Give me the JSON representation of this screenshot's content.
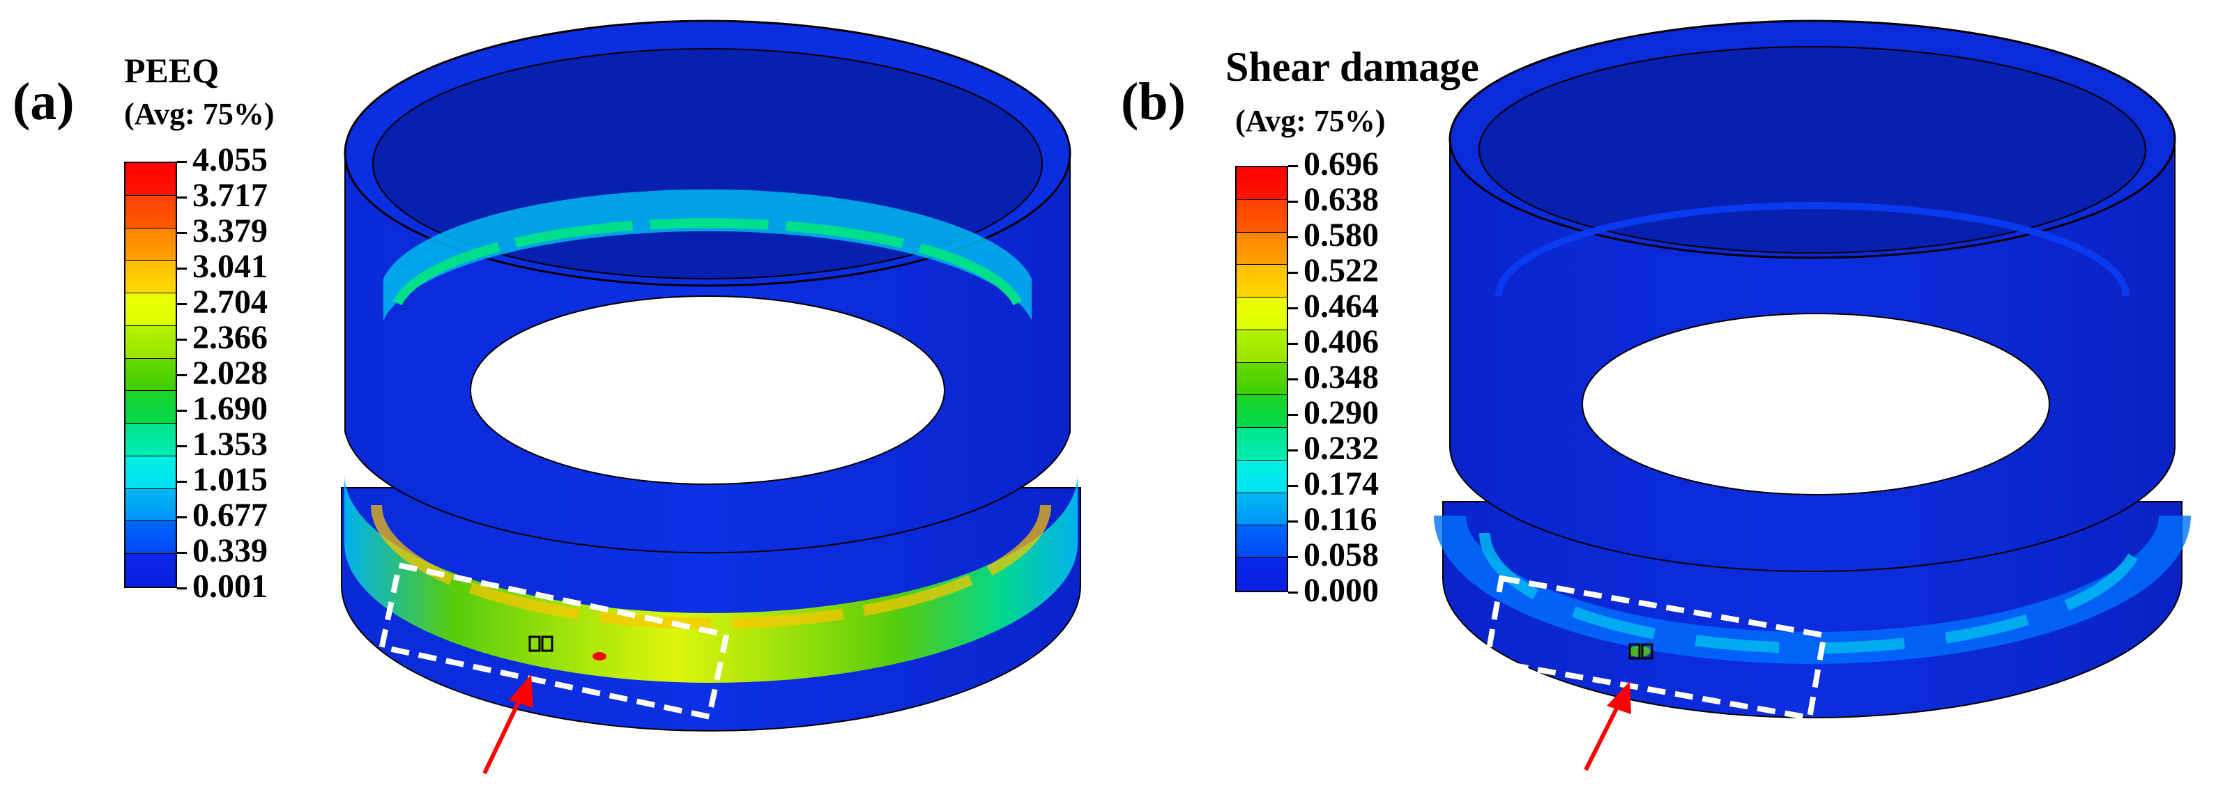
{
  "panel_a": {
    "label": "(a)",
    "legend": {
      "title": "PEEQ",
      "subtitle": "(Avg: 75%)",
      "values": [
        "4.055",
        "3.717",
        "3.379",
        "3.041",
        "2.704",
        "2.366",
        "2.028",
        "1.690",
        "1.353",
        "1.015",
        "0.677",
        "0.339",
        "0.001"
      ]
    }
  },
  "panel_b": {
    "label": "(b)",
    "legend": {
      "title": "Shear damage",
      "subtitle": "(Avg: 75%)",
      "values": [
        "0.696",
        "0.638",
        "0.580",
        "0.522",
        "0.464",
        "0.406",
        "0.348",
        "0.290",
        "0.232",
        "0.174",
        "0.116",
        "0.058",
        "0.000"
      ]
    }
  },
  "colors": {
    "colorbar": [
      "#ff0000",
      "#ff4d00",
      "#ff9a00",
      "#ffc400",
      "#e8ff00",
      "#a6ec00",
      "#5cd400",
      "#10d730",
      "#00e08c",
      "#00f0e0",
      "#00b8f0",
      "#0070ff",
      "#0a1ee8"
    ],
    "ring_body": "#0a28d8",
    "ring_inner": "#0820b0",
    "highlight_box": "#ffffff",
    "arrow": "#ff0000"
  },
  "legend_segments": [
    {
      "top": "#ff0000",
      "bottom": "#ff1500"
    },
    {
      "top": "#ff4000",
      "bottom": "#ff5c00"
    },
    {
      "top": "#ff8400",
      "bottom": "#ffa200"
    },
    {
      "top": "#ffbd00",
      "bottom": "#ffd800"
    },
    {
      "top": "#ecff00",
      "bottom": "#dcff00"
    },
    {
      "top": "#b5f200",
      "bottom": "#9ae400"
    },
    {
      "top": "#67d800",
      "bottom": "#3fcf00"
    },
    {
      "top": "#1ed52a",
      "bottom": "#00d84a"
    },
    {
      "top": "#00e38a",
      "bottom": "#00ecb3"
    },
    {
      "top": "#00f0df",
      "bottom": "#00e0f5"
    },
    {
      "top": "#00b9f2",
      "bottom": "#0094f7"
    },
    {
      "top": "#0066ff",
      "bottom": "#0048f4"
    },
    {
      "top": "#0a28e8",
      "bottom": "#0a1ee0"
    }
  ]
}
